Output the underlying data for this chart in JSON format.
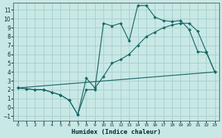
{
  "xlabel": "Humidex (Indice chaleur)",
  "bg_color": "#c8e8e5",
  "grid_color": "#a8d0cc",
  "line_color": "#1a6868",
  "xlim": [
    -0.5,
    23.5
  ],
  "ylim": [
    -1.5,
    11.8
  ],
  "xticks": [
    0,
    1,
    2,
    3,
    4,
    5,
    6,
    7,
    8,
    9,
    10,
    11,
    12,
    13,
    14,
    15,
    16,
    17,
    18,
    19,
    20,
    21,
    22,
    23
  ],
  "yticks": [
    -1,
    0,
    1,
    2,
    3,
    4,
    5,
    6,
    7,
    8,
    9,
    10,
    11
  ],
  "line1_x": [
    0,
    1,
    2,
    3,
    4,
    5,
    6,
    7,
    8,
    9,
    10,
    11,
    12,
    13,
    14,
    15,
    16,
    17,
    18,
    19,
    20,
    21,
    22,
    23
  ],
  "line1_y": [
    2.2,
    2.1,
    2.0,
    2.0,
    1.7,
    1.4,
    0.8,
    -0.8,
    3.3,
    2.2,
    3.5,
    5.0,
    5.4,
    6.0,
    7.0,
    8.0,
    8.5,
    9.0,
    9.3,
    9.5,
    9.5,
    8.6,
    6.3,
    4.0
  ],
  "line2_x": [
    0,
    1,
    2,
    3,
    4,
    5,
    6,
    7,
    8,
    9,
    10,
    11,
    12,
    13,
    14,
    15,
    16,
    17,
    18,
    19,
    20,
    21,
    22,
    23
  ],
  "line2_y": [
    2.2,
    2.1,
    2.0,
    2.0,
    1.7,
    1.4,
    0.8,
    -0.8,
    2.0,
    2.0,
    9.5,
    9.2,
    9.5,
    7.5,
    11.5,
    11.5,
    10.2,
    9.8,
    9.7,
    9.8,
    8.8,
    6.3,
    6.2,
    4.0
  ],
  "line3_x": [
    0,
    23
  ],
  "line3_y": [
    2.2,
    4.0
  ]
}
